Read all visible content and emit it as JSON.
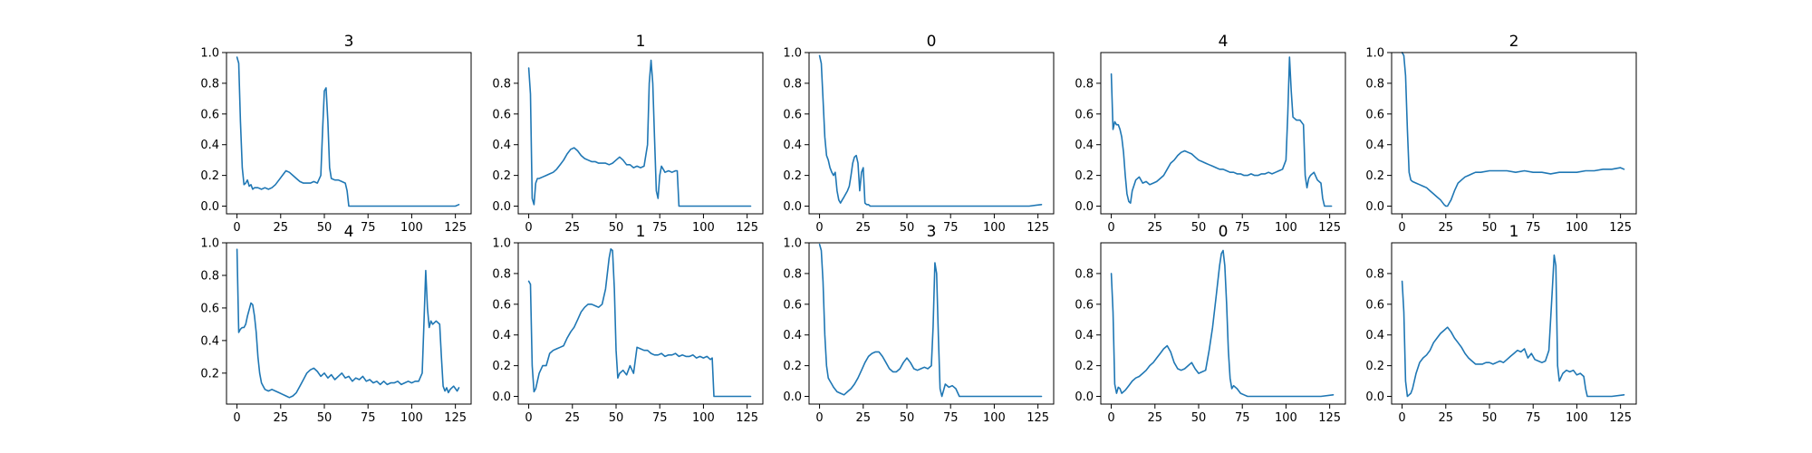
{
  "series_color": "#1f77b4",
  "chart_data": [
    {
      "type": "line",
      "title": "3",
      "xlim": [
        -6,
        134
      ],
      "ylim": [
        -0.05,
        1.0
      ],
      "xticks": [
        0,
        25,
        50,
        75,
        100,
        125
      ],
      "yticks": [
        0.0,
        0.2,
        0.4,
        0.6,
        0.8,
        1.0
      ],
      "ytick_labels": [
        "0.0",
        "0.2",
        "0.4",
        "0.6",
        "0.8",
        "1.0"
      ],
      "x": [
        0,
        1,
        2,
        3,
        4,
        5,
        6,
        7,
        8,
        9,
        10,
        12,
        14,
        16,
        18,
        20,
        22,
        24,
        26,
        28,
        30,
        32,
        34,
        36,
        38,
        40,
        42,
        44,
        46,
        48,
        49,
        50,
        51,
        52,
        53,
        54,
        56,
        58,
        60,
        62,
        63,
        64,
        66,
        70,
        80,
        90,
        100,
        110,
        120,
        125,
        127
      ],
      "y": [
        0.97,
        0.93,
        0.55,
        0.25,
        0.14,
        0.15,
        0.17,
        0.13,
        0.14,
        0.11,
        0.12,
        0.12,
        0.11,
        0.12,
        0.11,
        0.12,
        0.14,
        0.17,
        0.2,
        0.23,
        0.22,
        0.2,
        0.18,
        0.16,
        0.15,
        0.15,
        0.15,
        0.16,
        0.15,
        0.2,
        0.5,
        0.75,
        0.77,
        0.55,
        0.25,
        0.18,
        0.17,
        0.17,
        0.16,
        0.15,
        0.1,
        0.0,
        0.0,
        0.0,
        0.0,
        0.0,
        0.0,
        0.0,
        0.0,
        0.0,
        0.01
      ]
    },
    {
      "type": "line",
      "title": "1",
      "xlim": [
        -6,
        134
      ],
      "ylim": [
        -0.05,
        1.0
      ],
      "xticks": [
        0,
        25,
        50,
        75,
        100,
        125
      ],
      "yticks": [
        0.0,
        0.2,
        0.4,
        0.6,
        0.8
      ],
      "ytick_labels": [
        "0.0",
        "0.2",
        "0.4",
        "0.6",
        "0.8"
      ],
      "x": [
        0,
        1,
        2,
        3,
        4,
        5,
        6,
        8,
        10,
        12,
        14,
        16,
        18,
        20,
        22,
        24,
        26,
        28,
        30,
        32,
        34,
        36,
        38,
        40,
        42,
        44,
        46,
        48,
        50,
        52,
        54,
        56,
        58,
        60,
        62,
        64,
        66,
        68,
        69,
        70,
        71,
        72,
        73,
        74,
        75,
        76,
        78,
        80,
        82,
        84,
        85,
        86,
        90,
        100,
        110,
        120,
        127
      ],
      "y": [
        0.9,
        0.73,
        0.05,
        0.01,
        0.15,
        0.18,
        0.18,
        0.19,
        0.2,
        0.21,
        0.22,
        0.24,
        0.27,
        0.3,
        0.34,
        0.37,
        0.38,
        0.36,
        0.33,
        0.31,
        0.3,
        0.29,
        0.29,
        0.28,
        0.28,
        0.28,
        0.27,
        0.28,
        0.3,
        0.32,
        0.3,
        0.27,
        0.27,
        0.25,
        0.26,
        0.25,
        0.26,
        0.4,
        0.8,
        0.95,
        0.8,
        0.45,
        0.1,
        0.05,
        0.2,
        0.26,
        0.22,
        0.23,
        0.22,
        0.23,
        0.23,
        0.0,
        0.0,
        0.0,
        0.0,
        0.0,
        0.0
      ]
    },
    {
      "type": "line",
      "title": "0",
      "xlim": [
        -6,
        134
      ],
      "ylim": [
        -0.05,
        1.0
      ],
      "xticks": [
        0,
        25,
        50,
        75,
        100,
        125
      ],
      "yticks": [
        0.0,
        0.2,
        0.4,
        0.6,
        0.8,
        1.0
      ],
      "ytick_labels": [
        "0.0",
        "0.2",
        "0.4",
        "0.6",
        "0.8",
        "1.0"
      ],
      "x": [
        0,
        1,
        2,
        3,
        4,
        5,
        6,
        7,
        8,
        9,
        10,
        11,
        12,
        13,
        14,
        15,
        16,
        17,
        18,
        19,
        20,
        21,
        22,
        23,
        24,
        25,
        26,
        27,
        28,
        29,
        30,
        40,
        60,
        80,
        100,
        120,
        127
      ],
      "y": [
        0.98,
        0.93,
        0.7,
        0.45,
        0.33,
        0.3,
        0.25,
        0.22,
        0.2,
        0.22,
        0.1,
        0.04,
        0.02,
        0.04,
        0.06,
        0.08,
        0.1,
        0.13,
        0.2,
        0.28,
        0.32,
        0.33,
        0.28,
        0.1,
        0.22,
        0.25,
        0.02,
        0.01,
        0.01,
        0.0,
        0.0,
        0.0,
        0.0,
        0.0,
        0.0,
        0.0,
        0.01
      ]
    },
    {
      "type": "line",
      "title": "4",
      "xlim": [
        -6,
        134
      ],
      "ylim": [
        -0.05,
        1.0
      ],
      "xticks": [
        0,
        25,
        50,
        75,
        100,
        125
      ],
      "yticks": [
        0.0,
        0.2,
        0.4,
        0.6,
        0.8
      ],
      "ytick_labels": [
        "0.0",
        "0.2",
        "0.4",
        "0.6",
        "0.8"
      ],
      "x": [
        0,
        1,
        2,
        3,
        4,
        5,
        6,
        7,
        8,
        9,
        10,
        11,
        12,
        14,
        16,
        18,
        20,
        22,
        24,
        26,
        28,
        30,
        32,
        34,
        36,
        38,
        40,
        42,
        44,
        46,
        48,
        50,
        52,
        54,
        56,
        58,
        60,
        62,
        64,
        66,
        68,
        70,
        72,
        74,
        76,
        78,
        80,
        82,
        84,
        86,
        88,
        90,
        92,
        94,
        96,
        98,
        100,
        101,
        102,
        103,
        104,
        106,
        108,
        110,
        111,
        112,
        113,
        114,
        116,
        118,
        120,
        121,
        122,
        123,
        124,
        126
      ],
      "y": [
        0.86,
        0.5,
        0.55,
        0.53,
        0.53,
        0.5,
        0.45,
        0.35,
        0.2,
        0.08,
        0.03,
        0.02,
        0.1,
        0.17,
        0.19,
        0.15,
        0.16,
        0.14,
        0.15,
        0.16,
        0.18,
        0.2,
        0.24,
        0.28,
        0.3,
        0.33,
        0.35,
        0.36,
        0.35,
        0.34,
        0.32,
        0.3,
        0.29,
        0.28,
        0.27,
        0.26,
        0.25,
        0.24,
        0.24,
        0.23,
        0.22,
        0.22,
        0.21,
        0.21,
        0.2,
        0.2,
        0.21,
        0.2,
        0.2,
        0.21,
        0.21,
        0.22,
        0.21,
        0.22,
        0.23,
        0.24,
        0.3,
        0.6,
        0.97,
        0.75,
        0.58,
        0.56,
        0.56,
        0.53,
        0.2,
        0.12,
        0.18,
        0.2,
        0.22,
        0.17,
        0.15,
        0.05,
        0.0,
        0.0,
        0.0,
        0.0
      ]
    },
    {
      "type": "line",
      "title": "2",
      "xlim": [
        -6,
        134
      ],
      "ylim": [
        -0.05,
        1.0
      ],
      "xticks": [
        0,
        25,
        50,
        75,
        100,
        125
      ],
      "yticks": [
        0.0,
        0.2,
        0.4,
        0.6,
        0.8,
        1.0
      ],
      "ytick_labels": [
        "0.0",
        "0.2",
        "0.4",
        "0.6",
        "0.8",
        "1.0"
      ],
      "x": [
        0,
        1,
        2,
        3,
        4,
        5,
        6,
        8,
        10,
        12,
        14,
        16,
        18,
        20,
        22,
        24,
        25,
        26,
        27,
        28,
        30,
        32,
        34,
        36,
        38,
        40,
        42,
        45,
        50,
        55,
        60,
        65,
        70,
        75,
        80,
        85,
        90,
        95,
        100,
        105,
        110,
        115,
        120,
        125,
        127
      ],
      "y": [
        1.0,
        0.98,
        0.85,
        0.5,
        0.22,
        0.17,
        0.16,
        0.15,
        0.14,
        0.13,
        0.12,
        0.1,
        0.08,
        0.06,
        0.04,
        0.01,
        0.0,
        0.0,
        0.02,
        0.04,
        0.1,
        0.15,
        0.17,
        0.19,
        0.2,
        0.21,
        0.22,
        0.22,
        0.23,
        0.23,
        0.23,
        0.22,
        0.23,
        0.22,
        0.22,
        0.21,
        0.22,
        0.22,
        0.22,
        0.23,
        0.23,
        0.24,
        0.24,
        0.25,
        0.24
      ]
    },
    {
      "type": "line",
      "title": "4",
      "xlim": [
        -6,
        134
      ],
      "ylim": [
        0.01,
        1.0
      ],
      "xticks": [
        0,
        25,
        50,
        75,
        100,
        125
      ],
      "yticks": [
        0.2,
        0.4,
        0.6,
        0.8,
        1.0
      ],
      "ytick_labels": [
        "0.2",
        "0.4",
        "0.6",
        "0.8",
        "1.0"
      ],
      "x": [
        0,
        1,
        2,
        3,
        4,
        5,
        6,
        8,
        9,
        10,
        11,
        12,
        13,
        14,
        15,
        16,
        18,
        20,
        22,
        24,
        26,
        28,
        30,
        32,
        34,
        36,
        38,
        40,
        42,
        44,
        46,
        48,
        50,
        52,
        54,
        56,
        58,
        60,
        62,
        64,
        66,
        68,
        70,
        72,
        74,
        76,
        78,
        80,
        82,
        84,
        86,
        88,
        90,
        92,
        94,
        96,
        98,
        100,
        102,
        104,
        106,
        107,
        108,
        109,
        110,
        111,
        112,
        114,
        116,
        117,
        118,
        119,
        120,
        121,
        122,
        124,
        126,
        127
      ],
      "y": [
        0.96,
        0.45,
        0.47,
        0.48,
        0.48,
        0.5,
        0.55,
        0.63,
        0.62,
        0.55,
        0.45,
        0.3,
        0.2,
        0.14,
        0.12,
        0.1,
        0.09,
        0.1,
        0.09,
        0.08,
        0.07,
        0.06,
        0.05,
        0.06,
        0.08,
        0.12,
        0.16,
        0.2,
        0.22,
        0.23,
        0.21,
        0.18,
        0.2,
        0.17,
        0.19,
        0.16,
        0.18,
        0.2,
        0.17,
        0.18,
        0.15,
        0.17,
        0.16,
        0.18,
        0.15,
        0.16,
        0.14,
        0.15,
        0.13,
        0.15,
        0.13,
        0.14,
        0.14,
        0.15,
        0.13,
        0.14,
        0.15,
        0.14,
        0.15,
        0.15,
        0.2,
        0.5,
        0.83,
        0.6,
        0.48,
        0.52,
        0.5,
        0.52,
        0.5,
        0.3,
        0.12,
        0.09,
        0.11,
        0.08,
        0.1,
        0.12,
        0.09,
        0.11
      ]
    },
    {
      "type": "line",
      "title": "1",
      "xlim": [
        -6,
        134
      ],
      "ylim": [
        -0.05,
        1.0
      ],
      "xticks": [
        0,
        25,
        50,
        75,
        100,
        125
      ],
      "yticks": [
        0.0,
        0.2,
        0.4,
        0.6,
        0.8,
        1.0
      ],
      "ytick_labels": [
        "0.0",
        "0.2",
        "0.4",
        "0.6",
        "0.8",
        "1.0"
      ],
      "x": [
        0,
        1,
        2,
        3,
        4,
        5,
        6,
        8,
        10,
        12,
        14,
        16,
        18,
        20,
        22,
        24,
        26,
        28,
        30,
        32,
        34,
        36,
        38,
        40,
        42,
        44,
        46,
        47,
        48,
        49,
        50,
        51,
        52,
        54,
        56,
        58,
        60,
        62,
        64,
        66,
        68,
        70,
        72,
        74,
        76,
        78,
        80,
        82,
        84,
        86,
        88,
        90,
        92,
        94,
        96,
        98,
        100,
        102,
        104,
        105,
        106,
        110,
        120,
        127
      ],
      "y": [
        0.75,
        0.73,
        0.2,
        0.03,
        0.05,
        0.1,
        0.15,
        0.2,
        0.2,
        0.28,
        0.3,
        0.31,
        0.32,
        0.33,
        0.38,
        0.42,
        0.45,
        0.5,
        0.55,
        0.58,
        0.6,
        0.6,
        0.59,
        0.58,
        0.6,
        0.7,
        0.9,
        0.96,
        0.95,
        0.7,
        0.3,
        0.12,
        0.15,
        0.17,
        0.14,
        0.2,
        0.15,
        0.32,
        0.31,
        0.3,
        0.3,
        0.28,
        0.27,
        0.27,
        0.28,
        0.26,
        0.27,
        0.27,
        0.28,
        0.26,
        0.27,
        0.26,
        0.26,
        0.27,
        0.25,
        0.26,
        0.25,
        0.26,
        0.24,
        0.25,
        0.0,
        0.0,
        0.0,
        0.0
      ]
    },
    {
      "type": "line",
      "title": "3",
      "xlim": [
        -6,
        134
      ],
      "ylim": [
        -0.05,
        1.0
      ],
      "xticks": [
        0,
        25,
        50,
        75,
        100,
        125
      ],
      "yticks": [
        0.0,
        0.2,
        0.4,
        0.6,
        0.8,
        1.0
      ],
      "ytick_labels": [
        "0.0",
        "0.2",
        "0.4",
        "0.6",
        "0.8",
        "1.0"
      ],
      "x": [
        0,
        1,
        2,
        3,
        4,
        5,
        6,
        7,
        8,
        10,
        12,
        14,
        16,
        18,
        20,
        22,
        24,
        26,
        28,
        30,
        32,
        34,
        36,
        38,
        40,
        42,
        44,
        46,
        48,
        50,
        52,
        54,
        56,
        58,
        60,
        62,
        64,
        65,
        66,
        67,
        68,
        69,
        70,
        72,
        74,
        76,
        78,
        80,
        90,
        100,
        110,
        120,
        127
      ],
      "y": [
        0.99,
        0.95,
        0.75,
        0.4,
        0.2,
        0.12,
        0.1,
        0.08,
        0.06,
        0.03,
        0.02,
        0.01,
        0.03,
        0.05,
        0.08,
        0.12,
        0.17,
        0.22,
        0.26,
        0.28,
        0.29,
        0.29,
        0.26,
        0.22,
        0.18,
        0.16,
        0.16,
        0.18,
        0.22,
        0.25,
        0.22,
        0.18,
        0.17,
        0.18,
        0.19,
        0.18,
        0.2,
        0.45,
        0.87,
        0.8,
        0.4,
        0.05,
        0.0,
        0.08,
        0.06,
        0.07,
        0.05,
        0.0,
        0.0,
        0.0,
        0.0,
        0.0,
        0.0
      ]
    },
    {
      "type": "line",
      "title": "0",
      "xlim": [
        -6,
        134
      ],
      "ylim": [
        -0.05,
        1.0
      ],
      "xticks": [
        0,
        25,
        50,
        75,
        100,
        125
      ],
      "yticks": [
        0.0,
        0.2,
        0.4,
        0.6,
        0.8
      ],
      "ytick_labels": [
        "0.0",
        "0.2",
        "0.4",
        "0.6",
        "0.8"
      ],
      "x": [
        0,
        1,
        2,
        3,
        4,
        5,
        6,
        8,
        10,
        12,
        14,
        16,
        18,
        20,
        22,
        24,
        26,
        28,
        30,
        32,
        34,
        36,
        38,
        40,
        42,
        44,
        46,
        48,
        50,
        52,
        54,
        56,
        58,
        60,
        62,
        63,
        64,
        65,
        66,
        67,
        68,
        69,
        70,
        72,
        74,
        76,
        78,
        80,
        90,
        100,
        110,
        120,
        127
      ],
      "y": [
        0.8,
        0.55,
        0.08,
        0.02,
        0.06,
        0.05,
        0.02,
        0.04,
        0.07,
        0.1,
        0.12,
        0.13,
        0.15,
        0.17,
        0.2,
        0.22,
        0.25,
        0.28,
        0.31,
        0.33,
        0.29,
        0.22,
        0.18,
        0.17,
        0.18,
        0.2,
        0.22,
        0.18,
        0.15,
        0.16,
        0.17,
        0.3,
        0.45,
        0.65,
        0.85,
        0.93,
        0.95,
        0.85,
        0.6,
        0.3,
        0.12,
        0.05,
        0.07,
        0.05,
        0.02,
        0.01,
        0.0,
        0.0,
        0.0,
        0.0,
        0.0,
        0.0,
        0.01
      ]
    },
    {
      "type": "line",
      "title": "1",
      "xlim": [
        -6,
        134
      ],
      "ylim": [
        -0.05,
        1.0
      ],
      "xticks": [
        0,
        25,
        50,
        75,
        100,
        125
      ],
      "yticks": [
        0.0,
        0.2,
        0.4,
        0.6,
        0.8
      ],
      "ytick_labels": [
        "0.0",
        "0.2",
        "0.4",
        "0.6",
        "0.8"
      ],
      "x": [
        0,
        1,
        2,
        3,
        4,
        5,
        6,
        8,
        10,
        12,
        14,
        16,
        18,
        20,
        22,
        24,
        26,
        28,
        30,
        32,
        34,
        36,
        38,
        40,
        42,
        44,
        46,
        48,
        50,
        52,
        54,
        56,
        58,
        60,
        62,
        64,
        66,
        68,
        70,
        72,
        74,
        76,
        78,
        80,
        82,
        84,
        86,
        87,
        88,
        89,
        90,
        92,
        94,
        96,
        98,
        100,
        102,
        104,
        105,
        106,
        110,
        120,
        127
      ],
      "y": [
        0.75,
        0.55,
        0.1,
        0.0,
        0.01,
        0.02,
        0.05,
        0.15,
        0.22,
        0.25,
        0.27,
        0.3,
        0.35,
        0.38,
        0.41,
        0.43,
        0.45,
        0.42,
        0.38,
        0.35,
        0.32,
        0.28,
        0.25,
        0.23,
        0.21,
        0.21,
        0.21,
        0.22,
        0.22,
        0.21,
        0.22,
        0.23,
        0.22,
        0.24,
        0.26,
        0.28,
        0.3,
        0.29,
        0.31,
        0.25,
        0.28,
        0.24,
        0.23,
        0.22,
        0.23,
        0.3,
        0.7,
        0.92,
        0.85,
        0.2,
        0.1,
        0.15,
        0.17,
        0.16,
        0.17,
        0.14,
        0.15,
        0.13,
        0.05,
        0.0,
        0.0,
        0.0,
        0.01
      ]
    }
  ]
}
